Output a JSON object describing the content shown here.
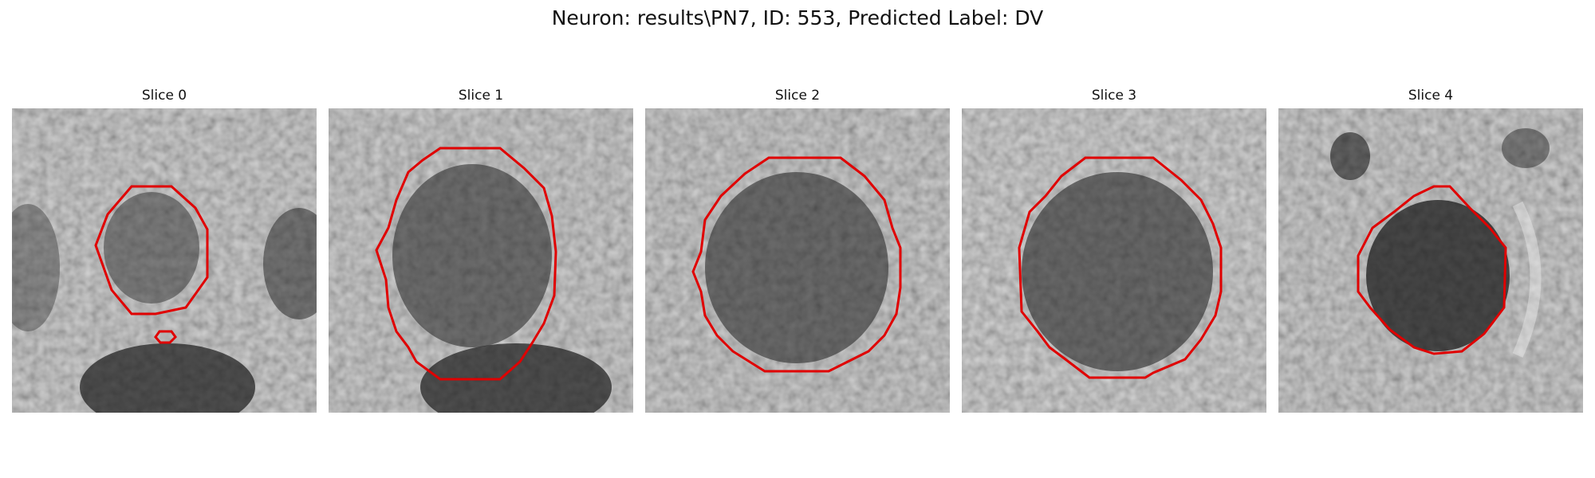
{
  "figure": {
    "title": "Neuron: results\\PN7, ID: 553, Predicted Label: DV"
  },
  "panels": [
    {
      "title": "Slice 0",
      "contour_color": "#e00000"
    },
    {
      "title": "Slice 1",
      "contour_color": "#e00000"
    },
    {
      "title": "Slice 2",
      "contour_color": "#e00000"
    },
    {
      "title": "Slice 3",
      "contour_color": "#e00000"
    },
    {
      "title": "Slice 4",
      "contour_color": "#e00000"
    }
  ]
}
